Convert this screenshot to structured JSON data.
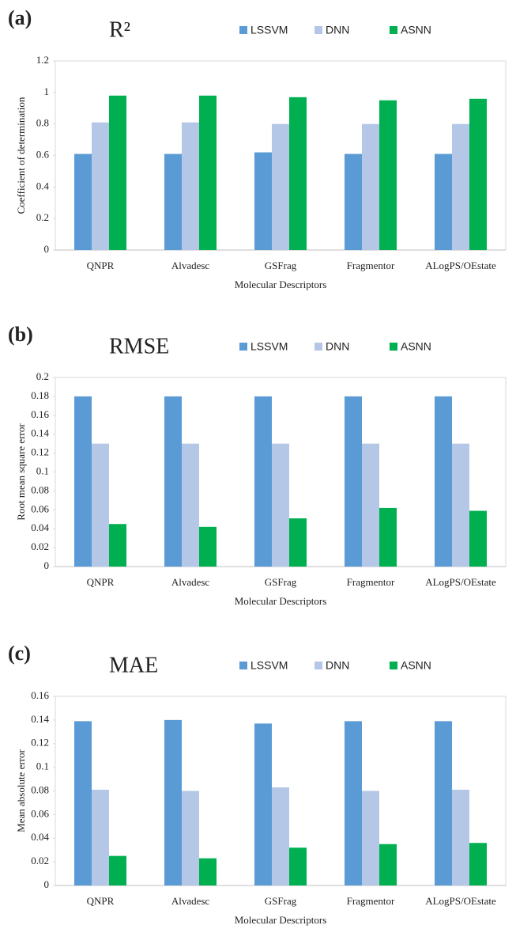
{
  "chart_data": [
    {
      "type": "bar",
      "panel_label": "(a)",
      "title": "R²",
      "x_label": "Molecular Descriptors",
      "y_label": "Coefficient of determination",
      "categories": [
        "QNPR",
        "Alvadesc",
        "GSFrag",
        "Fragmentor",
        "ALogPS/OEstate"
      ],
      "series": [
        {
          "name": "LSSVM",
          "color": "#5b9bd5",
          "values": [
            0.61,
            0.61,
            0.62,
            0.61,
            0.61
          ]
        },
        {
          "name": "DNN",
          "color": "#b4c7e7",
          "values": [
            0.81,
            0.81,
            0.8,
            0.8,
            0.8
          ]
        },
        {
          "name": "ASNN",
          "color": "#00b050",
          "values": [
            0.98,
            0.98,
            0.97,
            0.95,
            0.96
          ]
        }
      ],
      "ylim": [
        0,
        1.2
      ],
      "yticks": [
        0,
        0.2,
        0.4,
        0.6,
        0.8,
        1,
        1.2
      ],
      "legend": "top"
    },
    {
      "type": "bar",
      "panel_label": "(b)",
      "title": "RMSE",
      "x_label": "Molecular Descriptors",
      "y_label": "Root mean square error",
      "categories": [
        "QNPR",
        "Alvadesc",
        "GSFrag",
        "Fragmentor",
        "ALogPS/OEstate"
      ],
      "series": [
        {
          "name": "LSSVM",
          "color": "#5b9bd5",
          "values": [
            0.18,
            0.18,
            0.18,
            0.18,
            0.18
          ]
        },
        {
          "name": "DNN",
          "color": "#b4c7e7",
          "values": [
            0.13,
            0.13,
            0.13,
            0.13,
            0.13
          ]
        },
        {
          "name": "ASNN",
          "color": "#00b050",
          "values": [
            0.045,
            0.042,
            0.051,
            0.062,
            0.059
          ]
        }
      ],
      "ylim": [
        0,
        0.2
      ],
      "yticks": [
        0,
        0.02,
        0.04,
        0.06,
        0.08,
        0.1,
        0.12,
        0.14,
        0.16,
        0.18,
        0.2
      ],
      "legend": "top"
    },
    {
      "type": "bar",
      "panel_label": "(c)",
      "title": "MAE",
      "x_label": "Molecular Descriptors",
      "y_label": "Mean absolute error",
      "categories": [
        "QNPR",
        "Alvadesc",
        "GSFrag",
        "Fragmentor",
        "ALogPS/OEstate"
      ],
      "series": [
        {
          "name": "LSSVM",
          "color": "#5b9bd5",
          "values": [
            0.139,
            0.14,
            0.137,
            0.139,
            0.139
          ]
        },
        {
          "name": "DNN",
          "color": "#b4c7e7",
          "values": [
            0.081,
            0.08,
            0.083,
            0.08,
            0.081
          ]
        },
        {
          "name": "ASNN",
          "color": "#00b050",
          "values": [
            0.025,
            0.023,
            0.032,
            0.035,
            0.036
          ]
        }
      ],
      "ylim": [
        0,
        0.16
      ],
      "yticks": [
        0,
        0.02,
        0.04,
        0.06,
        0.08,
        0.1,
        0.12,
        0.14,
        0.16
      ],
      "legend": "top"
    }
  ]
}
